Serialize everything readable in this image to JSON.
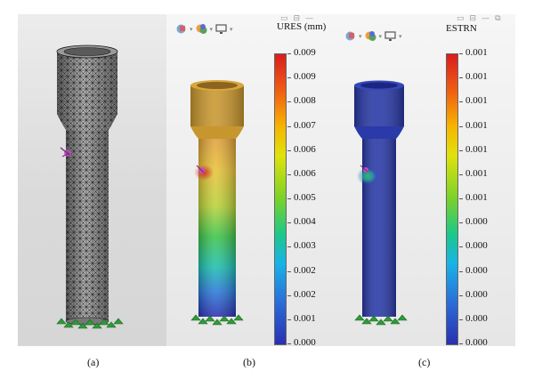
{
  "panels": [
    {
      "id": "a",
      "caption": "(a)"
    },
    {
      "id": "b",
      "caption": "(b)",
      "legend": {
        "title": "URES (mm)",
        "ticks": [
          "0.009",
          "0.009",
          "0.008",
          "0.007",
          "0.006",
          "0.006",
          "0.005",
          "0.004",
          "0.003",
          "0.002",
          "0.002",
          "0.001",
          "0.000"
        ]
      }
    },
    {
      "id": "c",
      "caption": "(c)",
      "legend": {
        "title": "ESTRN",
        "ticks": [
          "0.001",
          "0.001",
          "0.001",
          "0.001",
          "0.001",
          "0.001",
          "0.001",
          "0.000",
          "0.000",
          "0.000",
          "0.000",
          "0.000",
          "0.000"
        ]
      }
    }
  ],
  "colors": {
    "mesh_fill": "#8a8a8a",
    "mesh_line": "#1a1a1a",
    "displaced_top": "#c8962e",
    "strain_body": "#2a3aa8",
    "fixture": "#2f9a3a",
    "load": "#c050c0"
  }
}
